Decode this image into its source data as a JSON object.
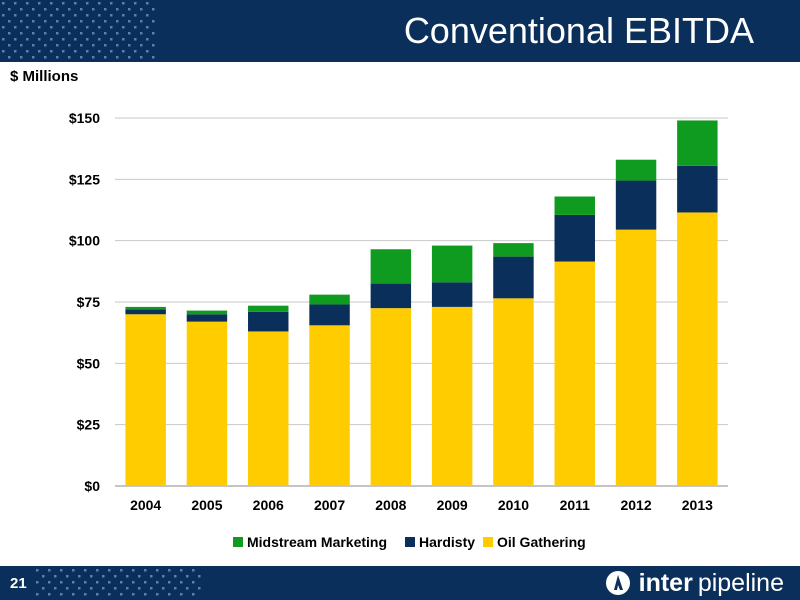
{
  "header": {
    "title": "Conventional EBITDA"
  },
  "footer": {
    "page_number": "21",
    "logo_text_bold": "inter",
    "logo_text_light": "pipeline"
  },
  "colors": {
    "navy": "#0b2f5b",
    "oil_gathering": "#ffcc00",
    "hardisty": "#0b2f5b",
    "midstream_marketing": "#0f9b1f"
  },
  "icons": {
    "logo": "inter-pipeline-logo-icon"
  },
  "chart_data": {
    "type": "bar",
    "stacked": true,
    "title": "",
    "ylabel": "$ Millions",
    "xlabel": "",
    "ylim": [
      0,
      150
    ],
    "yticks": [
      0,
      25,
      50,
      75,
      100,
      125,
      150
    ],
    "ytick_labels": [
      "$0",
      "$25",
      "$50",
      "$75",
      "$100",
      "$125",
      "$150"
    ],
    "categories": [
      "2004",
      "2005",
      "2006",
      "2007",
      "2008",
      "2009",
      "2010",
      "2011",
      "2012",
      "2013"
    ],
    "grid": true,
    "legend_position": "bottom",
    "series": [
      {
        "name": "Oil Gathering",
        "color": "#ffcc00",
        "values": [
          70,
          67,
          63,
          65.5,
          72.5,
          73,
          76.5,
          91.5,
          104.5,
          111.5
        ]
      },
      {
        "name": "Hardisty",
        "color": "#0b2f5b",
        "values": [
          2,
          3,
          8,
          8.5,
          10,
          10,
          17,
          19,
          20,
          19
        ]
      },
      {
        "name": "Midstream Marketing",
        "color": "#0f9b1f",
        "values": [
          1,
          1.5,
          2.5,
          4,
          14,
          15,
          5.5,
          7.5,
          8.5,
          18.5
        ]
      }
    ],
    "legend_order": [
      "Midstream Marketing",
      "Hardisty",
      "Oil Gathering"
    ]
  }
}
